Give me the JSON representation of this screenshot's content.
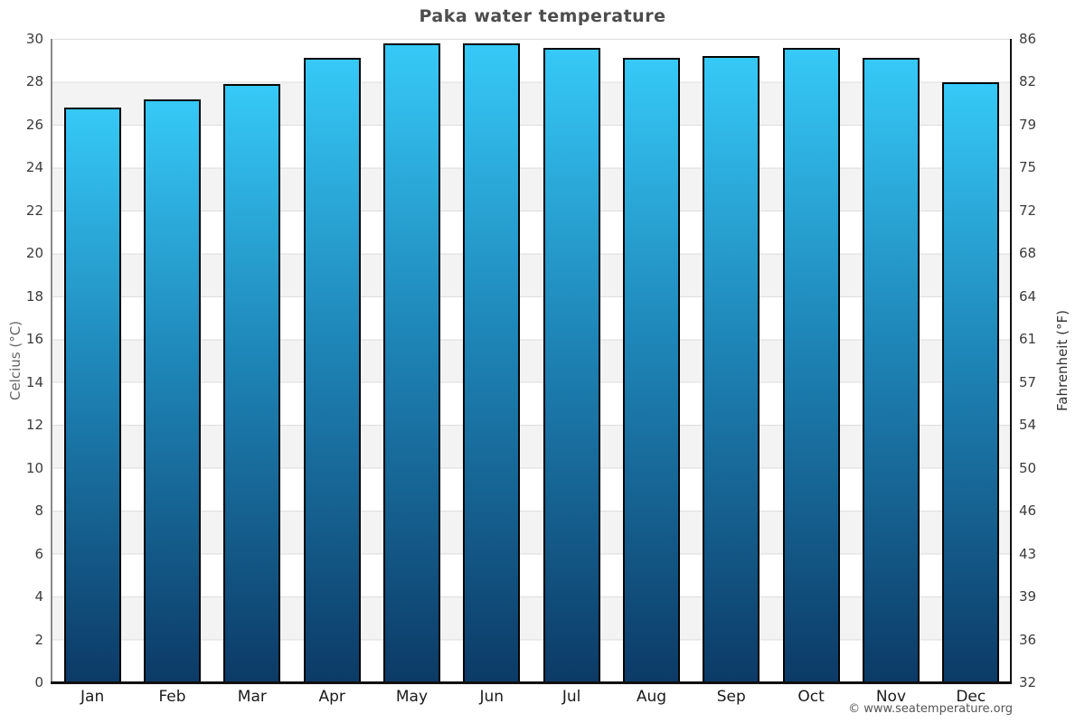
{
  "title": "Paka water temperature",
  "footer": {
    "credit": "© www.seatemperature.org"
  },
  "colors": {
    "bar_top": "#36c9f7",
    "bar_mid": "#1e86b8",
    "bar_bottom": "#0c3a66",
    "bar_border": "#050505",
    "band_gray": "#f3f3f3",
    "gridline": "#dedede",
    "title_text": "#4d4d4d"
  },
  "chart_data": {
    "type": "bar",
    "title": "Paka water temperature",
    "categories": [
      "Jan",
      "Feb",
      "Mar",
      "Apr",
      "May",
      "Jun",
      "Jul",
      "Aug",
      "Sep",
      "Oct",
      "Nov",
      "Dec"
    ],
    "series": [
      {
        "name": "Water temperature (°C)",
        "values": [
          26.8,
          27.2,
          27.9,
          29.1,
          29.8,
          29.8,
          29.6,
          29.1,
          29.2,
          29.6,
          29.1,
          28.0
        ]
      }
    ],
    "xlabel": "",
    "ylabel_left": "Celcius (°C)",
    "ylabel_right": "Fahrenheit (°F)",
    "ylim": [
      0,
      30
    ],
    "ytick_step_celsius": 2,
    "celsius_ticks": [
      "30",
      "28",
      "26",
      "24",
      "22",
      "20",
      "18",
      "16",
      "14",
      "12",
      "10",
      "8",
      "6",
      "4",
      "2",
      "0"
    ],
    "fahrenheit_ticks": [
      "86",
      "82",
      "79",
      "75",
      "72",
      "68",
      "64",
      "61",
      "57",
      "54",
      "50",
      "46",
      "43",
      "39",
      "36",
      "32"
    ],
    "grid": "horizontal alternating 2°C bands (white / light gray) with thin gridlines",
    "legend_position": "none"
  }
}
